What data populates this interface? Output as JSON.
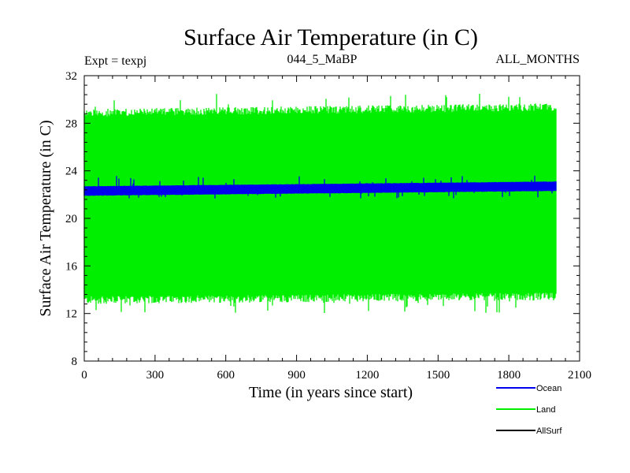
{
  "chart_data": {
    "type": "line",
    "title": "Surface Air Temperature (in C)",
    "subtitle_left": "Expt = texpj",
    "subtitle_center": "044_5_MaBP",
    "subtitle_right": "ALL_MONTHS",
    "xlabel": "Time (in years since start)",
    "ylabel": "Surface Air Temperature (in C)",
    "xlim": [
      0,
      2100
    ],
    "ylim": [
      8,
      32
    ],
    "x_major_ticks": [
      0,
      300,
      600,
      900,
      1200,
      1500,
      1800,
      2100
    ],
    "y_major_ticks": [
      8,
      12,
      16,
      20,
      24,
      28,
      32
    ],
    "x_tick_labels": [
      "0",
      "300",
      "600",
      "900",
      "1200",
      "1500",
      "1800",
      "2100"
    ],
    "y_tick_labels": [
      "8",
      "12",
      "16",
      "20",
      "24",
      "28",
      "32"
    ],
    "x_minor_step": 60,
    "y_minor_step": 0.8,
    "grid": false,
    "legend_position": "bottom-right",
    "series": [
      {
        "name": "Land",
        "color": "#00ee00",
        "x_range": [
          0,
          2000
        ],
        "band_low_start": 13.0,
        "band_low_end": 13.3,
        "band_high_start": 29.0,
        "band_high_end": 29.5,
        "spike_low_min": 12.0,
        "spike_high_max": 30.5
      },
      {
        "name": "Ocean",
        "color": "#0000ee",
        "x_range": [
          0,
          2000
        ],
        "band_low_start": 21.9,
        "band_low_end": 22.3,
        "band_high_start": 22.7,
        "band_high_end": 23.1,
        "spike_low_min": 21.6,
        "spike_high_max": 23.6
      },
      {
        "name": "AllSurf",
        "color": "#000000",
        "x_range": [
          0,
          2000
        ],
        "values": []
      }
    ],
    "legend": [
      {
        "label": "Ocean",
        "color": "#0000ee"
      },
      {
        "label": "Land",
        "color": "#00ee00"
      },
      {
        "label": "AllSurf",
        "color": "#000000"
      }
    ]
  }
}
